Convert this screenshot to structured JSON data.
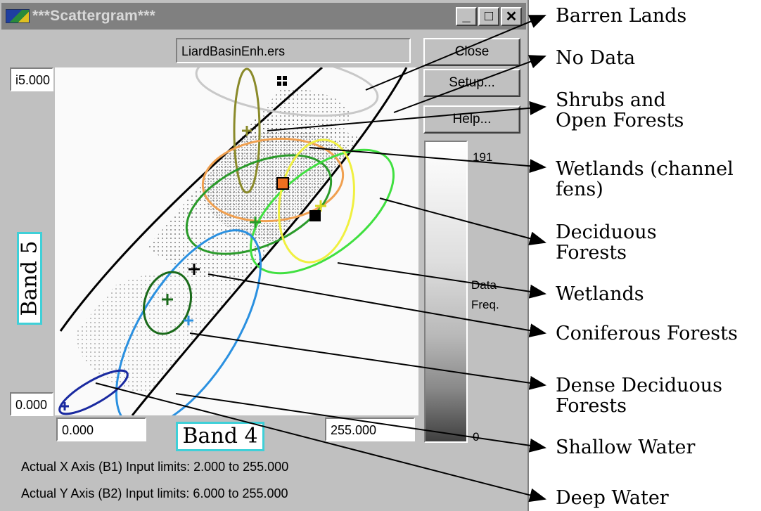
{
  "window": {
    "title": "***Scattergram***",
    "minimize_glyph": "_",
    "maximize_glyph": "□",
    "close_glyph": "✕"
  },
  "dataset_name": "LiardBasinEnh.ers",
  "buttons": {
    "close": "Close",
    "setup": "Setup...",
    "help": "Help..."
  },
  "axes": {
    "y_max": "i5.000",
    "y_min": "0.000",
    "x_min": "0.000",
    "x_max": "255.000",
    "x_label": "Band 4",
    "y_label": "Band 5"
  },
  "frequency_scale": {
    "max": "191",
    "min": "0",
    "label_line1": "Data",
    "label_line2": "Freq."
  },
  "info": {
    "x_limits": "Actual X Axis (B1) Input limits: 2.000 to 255.000",
    "y_limits": "Actual Y Axis (B2) Input limits: 6.000 to 255.000"
  },
  "annotations": [
    {
      "lines": [
        "Barren Lands"
      ]
    },
    {
      "lines": [
        "No Data"
      ]
    },
    {
      "lines": [
        "Shrubs and",
        "Open Forests"
      ]
    },
    {
      "lines": [
        "Wetlands (channel",
        "fens)"
      ]
    },
    {
      "lines": [
        "Deciduous",
        "Forests"
      ]
    },
    {
      "lines": [
        "Wetlands"
      ]
    },
    {
      "lines": [
        "Coniferous Forests"
      ]
    },
    {
      "lines": [
        "Dense Deciduous",
        "Forests"
      ]
    },
    {
      "lines": [
        "Shallow Water"
      ]
    },
    {
      "lines": [
        "Deep Water"
      ]
    }
  ],
  "colors": {
    "barren": "#c8c8c8",
    "shrubs": "#8a8a2a",
    "wetlands_fens": "#f0a050",
    "deciduous": "#2a9a2a",
    "deciduous_light": "#40e040",
    "wetlands": "#f0f040",
    "coniferous": "#1a6a1a",
    "dense_deciduous": "#2a90e0",
    "deep_water": "#1a2aa0",
    "highlight_box": "#3fd0d8"
  }
}
